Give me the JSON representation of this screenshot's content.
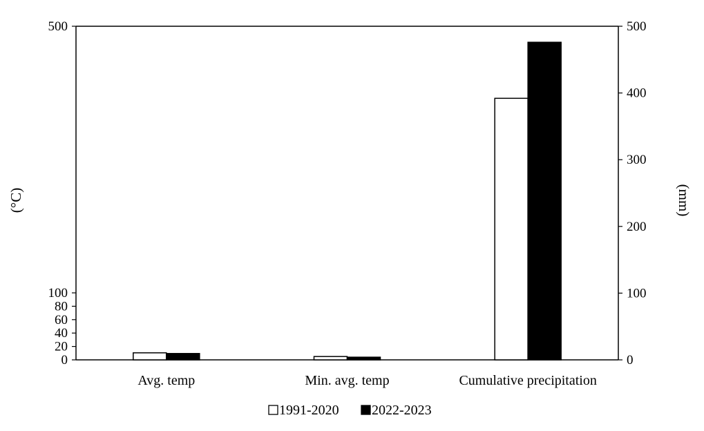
{
  "chart_data": {
    "type": "bar",
    "categories": [
      "Avg. temp",
      "Min. avg. temp",
      "Cumulative precipitation"
    ],
    "series": [
      {
        "name": "1991-2020",
        "values": [
          10.5,
          5,
          392
        ],
        "color": "#ffffff",
        "stroke": "#000000"
      },
      {
        "name": "2022-2023",
        "values": [
          9.5,
          4,
          476
        ],
        "color": "#000000",
        "stroke": "#000000"
      }
    ],
    "title": "",
    "xlabel": "",
    "ylabel": "(°C)",
    "y2label": "(mm)",
    "ylim": [
      0,
      500
    ],
    "y2lim": [
      0,
      500
    ],
    "y_ticks": [
      "0",
      "20",
      "40",
      "60",
      "80",
      "100",
      "500"
    ],
    "y_tick_values": [
      0,
      20,
      40,
      60,
      80,
      100,
      500
    ],
    "y2_ticks": [
      "0",
      "100",
      "200",
      "300",
      "400",
      "500"
    ],
    "y2_tick_values": [
      0,
      100,
      200,
      300,
      400,
      500
    ],
    "grid": false,
    "legend_position": "bottom-center"
  }
}
